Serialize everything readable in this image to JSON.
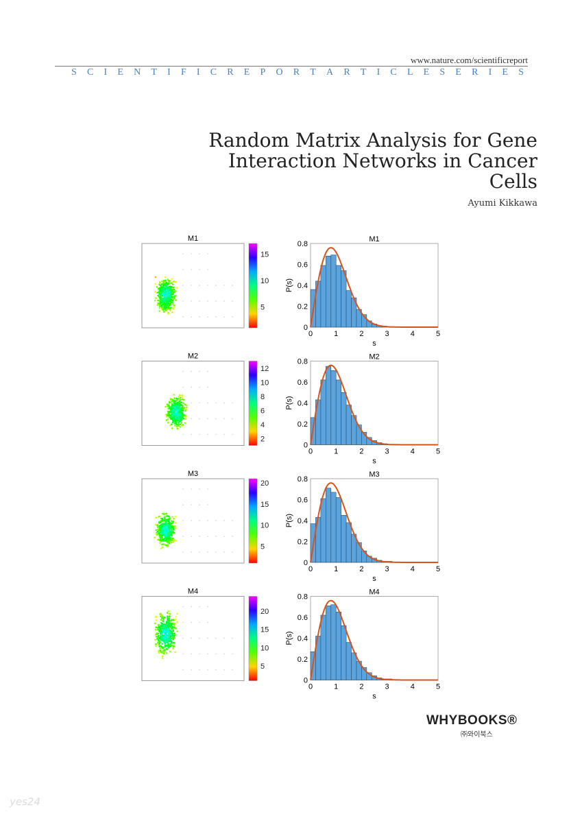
{
  "header": {
    "url": "www.nature.com/scientificreport",
    "series": "SCIENTIFICREPORTARTICLESERIES"
  },
  "book": {
    "title_lines": [
      "Random Matrix Analysis for Gene",
      "Interaction Networks in Cancer",
      "Cells"
    ],
    "author": "Ayumi Kikkawa"
  },
  "publisher": {
    "name": "WHYBOOKS®",
    "korean": "㈜와이북스"
  },
  "watermark": "yes24",
  "colors": {
    "bar": "#5aa3dc",
    "bar_edge": "#2f4f6f",
    "curve": "#d95319",
    "series_text": "#4a7fc0"
  },
  "chart_data": [
    {
      "panel": "M1",
      "scatter_title": "M1",
      "colorbar_ticks": [
        5,
        10,
        15
      ],
      "colorbar_range": [
        1,
        17
      ],
      "type": "bar",
      "title": "M1",
      "xlabel": "s",
      "ylabel": "P(s)",
      "xlim": [
        0,
        5
      ],
      "ylim": [
        0,
        0.8
      ],
      "xticks": [
        0,
        1,
        2,
        3,
        4,
        5
      ],
      "yticks": [
        0,
        0.2,
        0.4,
        0.6,
        0.8
      ],
      "bin_width": 0.2,
      "values": [
        0.36,
        0.44,
        0.59,
        0.68,
        0.69,
        0.59,
        0.54,
        0.35,
        0.28,
        0.17,
        0.12,
        0.06,
        0.03,
        0.015,
        0.01,
        0.005,
        0.004,
        0.003,
        0.003,
        0.002
      ],
      "curve": "Wigner surmise P(s)=(pi/2) s exp(-pi s^2/4)"
    },
    {
      "panel": "M2",
      "scatter_title": "M2",
      "colorbar_ticks": [
        2,
        4,
        6,
        8,
        10,
        12
      ],
      "colorbar_range": [
        1,
        13
      ],
      "type": "bar",
      "title": "M2",
      "xlabel": "s",
      "ylabel": "P(s)",
      "xlim": [
        0,
        5
      ],
      "ylim": [
        0,
        0.8
      ],
      "xticks": [
        0,
        1,
        2,
        3,
        4,
        5
      ],
      "yticks": [
        0,
        0.2,
        0.4,
        0.6,
        0.8
      ],
      "bin_width": 0.2,
      "values": [
        0.26,
        0.43,
        0.62,
        0.75,
        0.71,
        0.62,
        0.5,
        0.38,
        0.28,
        0.19,
        0.12,
        0.07,
        0.04,
        0.02,
        0.01,
        0.005
      ],
      "curve": "Wigner surmise P(s)=(pi/2) s exp(-pi s^2/4)"
    },
    {
      "panel": "M3",
      "scatter_title": "M3",
      "colorbar_ticks": [
        5,
        10,
        15,
        20
      ],
      "colorbar_range": [
        1,
        21
      ],
      "type": "bar",
      "title": "M3",
      "xlabel": "s",
      "ylabel": "P(s)",
      "xlim": [
        0,
        5
      ],
      "ylim": [
        0,
        0.8
      ],
      "xticks": [
        0,
        1,
        2,
        3,
        4,
        5
      ],
      "yticks": [
        0,
        0.2,
        0.4,
        0.6,
        0.8
      ],
      "bin_width": 0.2,
      "values": [
        0.37,
        0.43,
        0.61,
        0.71,
        0.67,
        0.62,
        0.45,
        0.38,
        0.27,
        0.19,
        0.11,
        0.06,
        0.04,
        0.02,
        0.01,
        0.01
      ],
      "curve": "Wigner surmise P(s)=(pi/2) s exp(-pi s^2/4)"
    },
    {
      "panel": "M4",
      "scatter_title": "M4",
      "colorbar_ticks": [
        5,
        10,
        15,
        20
      ],
      "colorbar_range": [
        1,
        24
      ],
      "type": "bar",
      "title": "M4",
      "xlabel": "s",
      "ylabel": "P(s)",
      "xlim": [
        0,
        5
      ],
      "ylim": [
        0,
        0.8
      ],
      "xticks": [
        0,
        1,
        2,
        3,
        4,
        5
      ],
      "yticks": [
        0,
        0.2,
        0.4,
        0.6,
        0.8
      ],
      "bin_width": 0.2,
      "values": [
        0.27,
        0.42,
        0.62,
        0.71,
        0.72,
        0.65,
        0.52,
        0.36,
        0.26,
        0.18,
        0.12,
        0.07,
        0.04,
        0.02,
        0.01,
        0.01,
        0.005
      ],
      "curve": "Wigner surmise P(s)=(pi/2) s exp(-pi s^2/4)"
    }
  ]
}
